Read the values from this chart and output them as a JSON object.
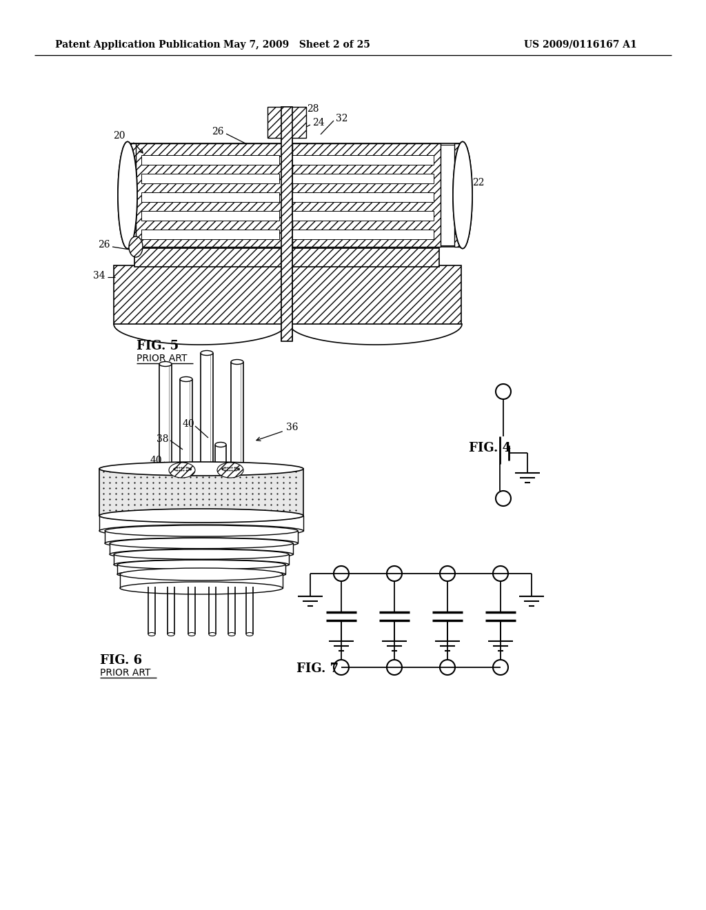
{
  "background_color": "#ffffff",
  "header_left": "Patent Application Publication",
  "header_center": "May 7, 2009   Sheet 2 of 25",
  "header_right": "US 2009/0116167 A1",
  "fig5_label": "FIG. 5",
  "fig5_sublabel": "PRIOR ART",
  "fig6_label": "FIG. 6",
  "fig6_sublabel": "PRIOR ART",
  "fig4_label": "FIG. 4",
  "fig7_label": "FIG. 7"
}
